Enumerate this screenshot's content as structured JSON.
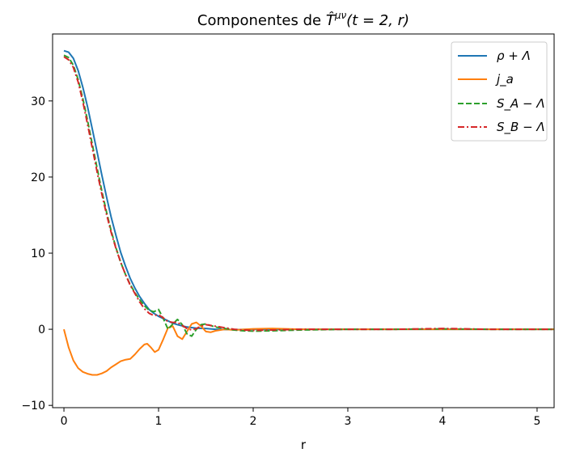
{
  "chart_data": {
    "type": "line",
    "title": "Componentes de T̂^μν(t = 2, r)",
    "title_parts": {
      "prefix": "Componentes de ",
      "symbol": "T̂",
      "superscript": "μν",
      "args": "(t = 2, r)"
    },
    "xlabel": "r",
    "ylabel": "",
    "xlim": [
      -0.12,
      5.18
    ],
    "ylim": [
      -10.3,
      38.8
    ],
    "xticks": [
      0,
      1,
      2,
      3,
      4,
      5
    ],
    "yticks": [
      -10,
      0,
      10,
      20,
      30
    ],
    "grid": false,
    "legend_position": "top-right",
    "series": [
      {
        "name": "ρ + Λ",
        "color": "#1f77b4",
        "dash": "solid",
        "points": [
          [
            0,
            36.6
          ],
          [
            0.05,
            36.4
          ],
          [
            0.1,
            35.6
          ],
          [
            0.15,
            34.0
          ],
          [
            0.2,
            31.8
          ],
          [
            0.25,
            29.2
          ],
          [
            0.3,
            26.3
          ],
          [
            0.35,
            23.3
          ],
          [
            0.4,
            20.3
          ],
          [
            0.45,
            17.4
          ],
          [
            0.5,
            14.7
          ],
          [
            0.55,
            12.3
          ],
          [
            0.6,
            10.1
          ],
          [
            0.65,
            8.3
          ],
          [
            0.7,
            6.7
          ],
          [
            0.75,
            5.4
          ],
          [
            0.8,
            4.3
          ],
          [
            0.85,
            3.4
          ],
          [
            0.9,
            2.6
          ],
          [
            0.95,
            2.1
          ],
          [
            1.0,
            1.7
          ],
          [
            1.05,
            1.4
          ],
          [
            1.1,
            1.1
          ],
          [
            1.15,
            0.8
          ],
          [
            1.2,
            0.6
          ],
          [
            1.3,
            0.3
          ],
          [
            1.4,
            0.15
          ],
          [
            1.5,
            0.1
          ],
          [
            1.6,
            0.0
          ],
          [
            1.8,
            -0.05
          ],
          [
            2.0,
            0.0
          ],
          [
            2.5,
            0.0
          ],
          [
            3.0,
            0.0
          ],
          [
            3.5,
            0.0
          ],
          [
            4.0,
            0.0
          ],
          [
            4.5,
            0.0
          ],
          [
            5.18,
            0.0
          ]
        ]
      },
      {
        "name": "j_a",
        "color": "#ff7f0e",
        "dash": "solid",
        "points": [
          [
            0,
            0.0
          ],
          [
            0.05,
            -2.4
          ],
          [
            0.1,
            -4.1
          ],
          [
            0.15,
            -5.1
          ],
          [
            0.2,
            -5.6
          ],
          [
            0.25,
            -5.85
          ],
          [
            0.3,
            -6.0
          ],
          [
            0.35,
            -6.0
          ],
          [
            0.4,
            -5.8
          ],
          [
            0.45,
            -5.5
          ],
          [
            0.5,
            -5.0
          ],
          [
            0.55,
            -4.6
          ],
          [
            0.6,
            -4.2
          ],
          [
            0.65,
            -4.0
          ],
          [
            0.7,
            -3.9
          ],
          [
            0.75,
            -3.3
          ],
          [
            0.8,
            -2.6
          ],
          [
            0.85,
            -2.0
          ],
          [
            0.88,
            -1.9
          ],
          [
            0.92,
            -2.4
          ],
          [
            0.96,
            -3.0
          ],
          [
            1.0,
            -2.7
          ],
          [
            1.05,
            -1.3
          ],
          [
            1.1,
            0.2
          ],
          [
            1.15,
            0.4
          ],
          [
            1.2,
            -0.9
          ],
          [
            1.25,
            -1.3
          ],
          [
            1.3,
            -0.3
          ],
          [
            1.35,
            0.7
          ],
          [
            1.4,
            0.9
          ],
          [
            1.45,
            0.4
          ],
          [
            1.5,
            -0.3
          ],
          [
            1.55,
            -0.4
          ],
          [
            1.6,
            -0.2
          ],
          [
            1.7,
            0.0
          ],
          [
            1.8,
            -0.1
          ],
          [
            2.0,
            0.05
          ],
          [
            2.2,
            0.1
          ],
          [
            2.5,
            0.0
          ],
          [
            3.0,
            0.0
          ],
          [
            3.5,
            0.0
          ],
          [
            4.0,
            0.0
          ],
          [
            4.5,
            0.0
          ],
          [
            5.18,
            0.0
          ]
        ]
      },
      {
        "name": "S_A − Λ",
        "color": "#2ca02c",
        "dash": "dashed",
        "points": [
          [
            0,
            36.0
          ],
          [
            0.05,
            35.7
          ],
          [
            0.1,
            34.7
          ],
          [
            0.15,
            32.8
          ],
          [
            0.2,
            30.3
          ],
          [
            0.25,
            27.4
          ],
          [
            0.3,
            24.3
          ],
          [
            0.35,
            21.2
          ],
          [
            0.4,
            18.2
          ],
          [
            0.45,
            15.4
          ],
          [
            0.5,
            12.9
          ],
          [
            0.55,
            10.7
          ],
          [
            0.6,
            8.8
          ],
          [
            0.65,
            7.2
          ],
          [
            0.7,
            5.9
          ],
          [
            0.75,
            4.8
          ],
          [
            0.8,
            3.9
          ],
          [
            0.85,
            3.1
          ],
          [
            0.9,
            2.5
          ],
          [
            0.95,
            2.3
          ],
          [
            1.0,
            2.6
          ],
          [
            1.05,
            1.4
          ],
          [
            1.1,
            0.0
          ],
          [
            1.15,
            0.7
          ],
          [
            1.2,
            1.3
          ],
          [
            1.25,
            0.6
          ],
          [
            1.3,
            -0.6
          ],
          [
            1.35,
            -0.9
          ],
          [
            1.4,
            0.0
          ],
          [
            1.45,
            0.6
          ],
          [
            1.5,
            0.7
          ],
          [
            1.6,
            0.3
          ],
          [
            1.7,
            0.1
          ],
          [
            1.8,
            -0.1
          ],
          [
            1.9,
            -0.2
          ],
          [
            2.0,
            -0.25
          ],
          [
            2.2,
            -0.2
          ],
          [
            2.5,
            -0.1
          ],
          [
            3.0,
            0.0
          ],
          [
            3.5,
            0.0
          ],
          [
            4.0,
            0.05
          ],
          [
            4.5,
            0.0
          ],
          [
            5.18,
            0.0
          ]
        ]
      },
      {
        "name": "S_B − Λ",
        "color": "#d62728",
        "dash": "dashdot",
        "points": [
          [
            0,
            35.8
          ],
          [
            0.05,
            35.4
          ],
          [
            0.1,
            34.4
          ],
          [
            0.15,
            32.5
          ],
          [
            0.2,
            29.9
          ],
          [
            0.25,
            26.9
          ],
          [
            0.3,
            23.8
          ],
          [
            0.35,
            20.7
          ],
          [
            0.4,
            17.8
          ],
          [
            0.45,
            15.1
          ],
          [
            0.5,
            12.7
          ],
          [
            0.55,
            10.6
          ],
          [
            0.6,
            8.8
          ],
          [
            0.65,
            7.2
          ],
          [
            0.7,
            5.8
          ],
          [
            0.75,
            4.7
          ],
          [
            0.8,
            3.6
          ],
          [
            0.85,
            2.7
          ],
          [
            0.9,
            2.1
          ],
          [
            0.95,
            1.8
          ],
          [
            1.0,
            1.9
          ],
          [
            1.05,
            1.5
          ],
          [
            1.1,
            1.0
          ],
          [
            1.15,
            0.9
          ],
          [
            1.2,
            0.9
          ],
          [
            1.25,
            0.5
          ],
          [
            1.3,
            0.1
          ],
          [
            1.35,
            -0.1
          ],
          [
            1.4,
            0.1
          ],
          [
            1.45,
            0.4
          ],
          [
            1.5,
            0.6
          ],
          [
            1.6,
            0.4
          ],
          [
            1.7,
            0.2
          ],
          [
            1.8,
            0.0
          ],
          [
            1.9,
            -0.1
          ],
          [
            2.0,
            -0.15
          ],
          [
            2.2,
            -0.1
          ],
          [
            2.5,
            0.0
          ],
          [
            3.0,
            0.0
          ],
          [
            3.5,
            0.0
          ],
          [
            4.0,
            0.1
          ],
          [
            4.5,
            0.0
          ],
          [
            5.18,
            0.0
          ]
        ]
      }
    ]
  }
}
